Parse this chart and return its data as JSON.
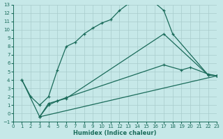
{
  "xlabel": "Humidex (Indice chaleur)",
  "bg_color": "#c6e8e8",
  "grid_color": "#a8cccc",
  "line_color": "#1a6b5a",
  "xlim": [
    0,
    23
  ],
  "ylim": [
    -1,
    13
  ],
  "xticks": [
    0,
    1,
    2,
    3,
    4,
    5,
    6,
    7,
    8,
    9,
    10,
    11,
    12,
    13,
    14,
    15,
    16,
    17,
    18,
    19,
    20,
    21,
    22,
    23
  ],
  "yticks": [
    -1,
    0,
    1,
    2,
    3,
    4,
    5,
    6,
    7,
    8,
    9,
    10,
    11,
    12,
    13
  ],
  "line1_x": [
    1,
    2,
    3,
    4,
    5,
    6,
    7,
    8,
    9,
    10,
    11,
    12,
    13,
    14,
    15,
    16,
    17,
    18,
    22,
    23
  ],
  "line1_y": [
    4,
    2,
    1.0,
    2.0,
    5.2,
    8.0,
    8.5,
    9.5,
    10.2,
    10.8,
    11.2,
    12.3,
    13.1,
    13.25,
    13.3,
    13.2,
    12.3,
    9.5,
    4.6,
    4.5
  ],
  "line2_x": [
    1,
    3,
    4,
    5,
    6,
    17,
    22,
    23
  ],
  "line2_y": [
    4,
    -0.4,
    1.2,
    1.5,
    1.8,
    9.5,
    4.6,
    4.5
  ],
  "line3_x": [
    3,
    4,
    5,
    6,
    17,
    19,
    20,
    22,
    23
  ],
  "line3_y": [
    -0.4,
    1.0,
    1.5,
    1.9,
    5.8,
    5.2,
    5.5,
    4.7,
    4.5
  ],
  "line4_x": [
    3,
    23
  ],
  "line4_y": [
    -0.4,
    4.5
  ]
}
